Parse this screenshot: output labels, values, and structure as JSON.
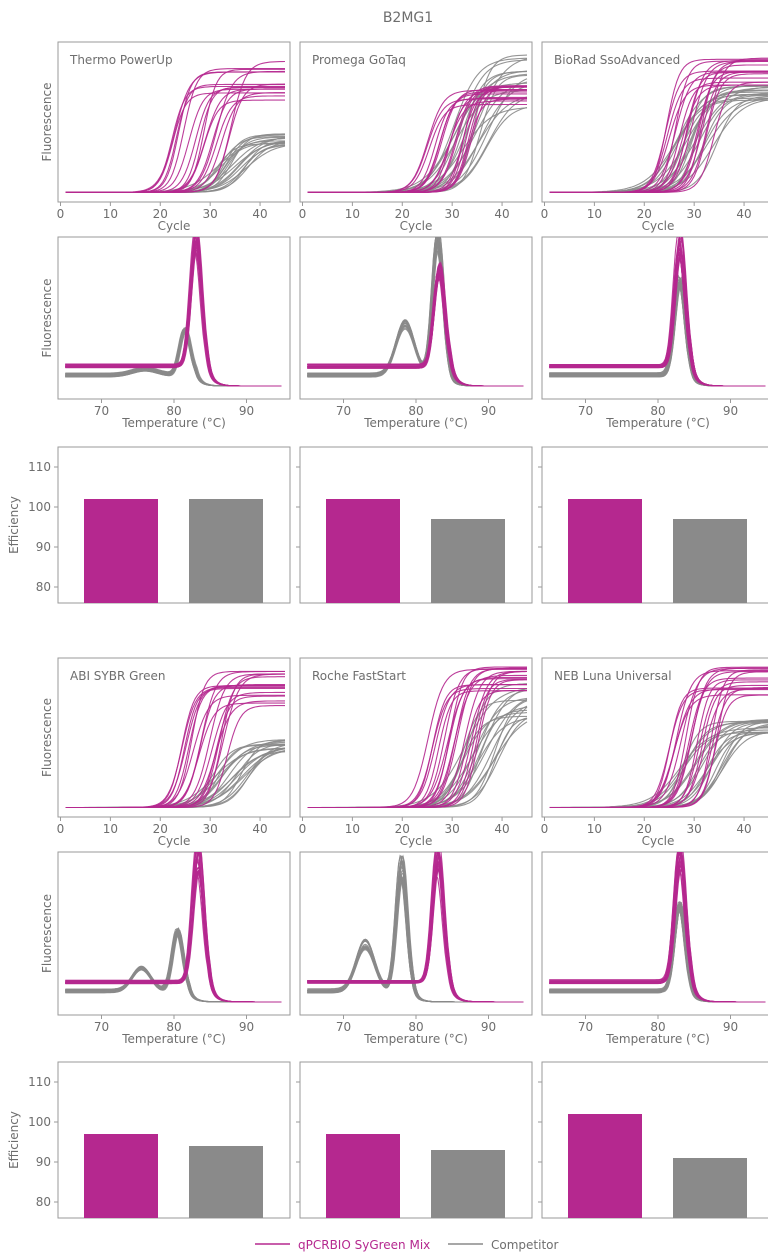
{
  "title": "B2MG1",
  "colors": {
    "sygreen": "#b5288f",
    "competitor": "#8a8a8a",
    "axis": "#9a9a9a",
    "text": "#6e6e6e"
  },
  "legend": {
    "sygreen_label": "qPCRBIO SyGreen Mix",
    "competitor_label": "Competitor"
  },
  "axes": {
    "amp_xlabel": "Cycle",
    "amp_ylabel": "Fluorescence",
    "amp_xticks": [
      "0",
      "10",
      "20",
      "30",
      "40"
    ],
    "melt_xlabel": "Temperature (°C)",
    "melt_ylabel": "Fluorescence",
    "melt_xticks": [
      "70",
      "80",
      "90"
    ],
    "eff_ylabel": "Efficiency",
    "eff_yticks": [
      "80",
      "90",
      "100",
      "110"
    ]
  },
  "chart_data": [
    {
      "type": "line",
      "group": "Thermo PowerUp",
      "title": "Thermo PowerUp",
      "xlabel": "Cycle",
      "ylabel": "Fluorescence",
      "xlim": [
        -0.5,
        46
      ],
      "xticks": [
        0,
        10,
        20,
        30,
        40
      ],
      "series": [
        {
          "name": "qPCRBIO SyGreen Mix",
          "ct_range": [
            22,
            35
          ],
          "plateau_range": [
            0.58,
            0.9
          ],
          "curves": 18
        },
        {
          "name": "Competitor",
          "ct_range": [
            31,
            38
          ],
          "plateau_range": [
            0.32,
            0.4
          ],
          "curves": 18
        }
      ]
    },
    {
      "type": "line",
      "group": "Promega GoTaq",
      "title": "Promega GoTaq",
      "xlabel": "Cycle",
      "ylabel": "Fluorescence",
      "xlim": [
        -0.5,
        46
      ],
      "xticks": [
        0,
        10,
        20,
        30,
        40
      ],
      "series": [
        {
          "name": "qPCRBIO SyGreen Mix",
          "ct_range": [
            25,
            35
          ],
          "plateau_range": [
            0.58,
            0.72
          ],
          "curves": 18
        },
        {
          "name": "Competitor",
          "ct_range": [
            30,
            38
          ],
          "plateau_range": [
            0.55,
            0.95
          ],
          "curves": 18
        }
      ]
    },
    {
      "type": "line",
      "group": "BioRad SsoAdvanced",
      "title": "BioRad SsoAdvanced",
      "xlabel": "Cycle",
      "ylabel": "Fluorescence",
      "xlim": [
        -0.5,
        46
      ],
      "xticks": [
        0,
        10,
        20,
        30,
        40
      ],
      "series": [
        {
          "name": "qPCRBIO SyGreen Mix",
          "ct_range": [
            24,
            34
          ],
          "plateau_range": [
            0.72,
            0.92
          ],
          "curves": 18
        },
        {
          "name": "Competitor",
          "ct_range": [
            26,
            35
          ],
          "plateau_range": [
            0.62,
            0.72
          ],
          "curves": 18
        }
      ]
    },
    {
      "type": "line",
      "group": "Thermo PowerUp",
      "title": "",
      "xlabel": "Temperature (°C)",
      "ylabel": "Fluorescence",
      "xlim": [
        64,
        96
      ],
      "xticks": [
        70,
        80,
        90
      ],
      "series": [
        {
          "name": "qPCRBIO SyGreen Mix",
          "peak_temp": 83,
          "peak_height": [
            0.72,
            0.96
          ],
          "curves": 18
        },
        {
          "name": "Competitor",
          "peak_temp": 81.5,
          "peak_height": [
            0.3,
            0.32
          ],
          "curves": 18
        }
      ]
    },
    {
      "type": "line",
      "group": "Promega GoTaq",
      "title": "",
      "xlabel": "Temperature (°C)",
      "ylabel": "Fluorescence",
      "xlim": [
        64,
        96
      ],
      "xticks": [
        70,
        80,
        90
      ],
      "series": [
        {
          "name": "qPCRBIO SyGreen Mix",
          "peak_temp": 83.2,
          "peak_height": [
            0.6,
            0.72
          ],
          "curves": 18
        },
        {
          "name": "Competitor",
          "peak_temp": 83,
          "peak_height": [
            0.85,
            0.98
          ],
          "shoulder_temp": 78.5,
          "curves": 18
        }
      ]
    },
    {
      "type": "line",
      "group": "BioRad SsoAdvanced",
      "title": "",
      "xlabel": "Temperature (°C)",
      "ylabel": "Fluorescence",
      "xlim": [
        64,
        96
      ],
      "xticks": [
        70,
        80,
        90
      ],
      "series": [
        {
          "name": "qPCRBIO SyGreen Mix",
          "peak_temp": 83,
          "peak_height": [
            0.75,
            0.96
          ],
          "curves": 18
        },
        {
          "name": "Competitor",
          "peak_temp": 83,
          "peak_height": [
            0.6,
            0.68
          ],
          "curves": 18
        }
      ]
    },
    {
      "type": "bar",
      "group": "Thermo PowerUp",
      "title": "",
      "categories": [
        "qPCRBIO SyGreen Mix",
        "Competitor"
      ],
      "values": [
        102,
        102
      ],
      "ylabel": "Efficiency",
      "ylim": [
        76,
        115
      ],
      "yticks": [
        80,
        90,
        100,
        110
      ]
    },
    {
      "type": "bar",
      "group": "Promega GoTaq",
      "title": "",
      "categories": [
        "qPCRBIO SyGreen Mix",
        "Competitor"
      ],
      "values": [
        102,
        97
      ],
      "ylabel": "Efficiency",
      "ylim": [
        76,
        115
      ],
      "yticks": [
        80,
        90,
        100,
        110
      ]
    },
    {
      "type": "bar",
      "group": "BioRad SsoAdvanced",
      "title": "",
      "categories": [
        "qPCRBIO SyGreen Mix",
        "Competitor"
      ],
      "values": [
        102,
        97
      ],
      "ylabel": "Efficiency",
      "ylim": [
        76,
        115
      ],
      "yticks": [
        80,
        90,
        100,
        110
      ]
    },
    {
      "type": "line",
      "group": "ABI SYBR Green",
      "title": "ABI SYBR Green",
      "xlabel": "Cycle",
      "ylabel": "Fluorescence",
      "xlim": [
        -0.5,
        46
      ],
      "xticks": [
        0,
        10,
        20,
        30,
        40
      ],
      "series": [
        {
          "name": "qPCRBIO SyGreen Mix",
          "ct_range": [
            24,
            34
          ],
          "plateau_range": [
            0.68,
            0.95
          ],
          "curves": 18
        },
        {
          "name": "Competitor",
          "ct_range": [
            30,
            38
          ],
          "plateau_range": [
            0.38,
            0.46
          ],
          "curves": 18
        }
      ]
    },
    {
      "type": "line",
      "group": "Roche FastStart",
      "title": "Roche FastStart",
      "xlabel": "Cycle",
      "ylabel": "Fluorescence",
      "xlim": [
        -0.5,
        46
      ],
      "xticks": [
        0,
        10,
        20,
        30,
        40
      ],
      "series": [
        {
          "name": "qPCRBIO SyGreen Mix",
          "ct_range": [
            25,
            36
          ],
          "plateau_range": [
            0.75,
            0.96
          ],
          "curves": 18
        },
        {
          "name": "Competitor",
          "ct_range": [
            31,
            40
          ],
          "plateau_range": [
            0.6,
            0.85
          ],
          "curves": 18
        }
      ]
    },
    {
      "type": "line",
      "group": "NEB Luna Universal",
      "title": "NEB Luna Universal",
      "xlabel": "Cycle",
      "ylabel": "Fluorescence",
      "xlim": [
        -0.5,
        46
      ],
      "xticks": [
        0,
        10,
        20,
        30,
        40
      ],
      "series": [
        {
          "name": "qPCRBIO SyGreen Mix",
          "ct_range": [
            25,
            35
          ],
          "plateau_range": [
            0.75,
            0.96
          ],
          "curves": 18
        },
        {
          "name": "Competitor",
          "ct_range": [
            27,
            37
          ],
          "plateau_range": [
            0.5,
            0.6
          ],
          "curves": 18
        }
      ]
    },
    {
      "type": "line",
      "group": "ABI SYBR Green",
      "title": "",
      "xlabel": "Temperature (°C)",
      "ylabel": "Fluorescence",
      "xlim": [
        64,
        96
      ],
      "xticks": [
        70,
        80,
        90
      ],
      "series": [
        {
          "name": "qPCRBIO SyGreen Mix",
          "peak_temp": 83.3,
          "peak_height": [
            0.72,
            0.96
          ],
          "curves": 18
        },
        {
          "name": "Competitor",
          "peak_temp": 80.5,
          "peak_height": [
            0.38,
            0.42
          ],
          "shoulder_temp": 75.5,
          "curves": 18
        }
      ]
    },
    {
      "type": "line",
      "group": "Roche FastStart",
      "title": "",
      "xlabel": "Temperature (°C)",
      "ylabel": "Fluorescence",
      "xlim": [
        64,
        96
      ],
      "xticks": [
        70,
        80,
        90
      ],
      "series": [
        {
          "name": "qPCRBIO SyGreen Mix",
          "peak_temp": 83,
          "peak_height": [
            0.72,
            0.94
          ],
          "curves": 18
        },
        {
          "name": "Competitor",
          "peak_temp": 78,
          "peak_height": [
            0.75,
            0.92
          ],
          "shoulder_temp": 73,
          "curves": 18
        }
      ]
    },
    {
      "type": "line",
      "group": "NEB Luna Universal",
      "title": "",
      "xlabel": "Temperature (°C)",
      "ylabel": "Fluorescence",
      "xlim": [
        64,
        96
      ],
      "xticks": [
        70,
        80,
        90
      ],
      "series": [
        {
          "name": "qPCRBIO SyGreen Mix",
          "peak_temp": 83,
          "peak_height": [
            0.75,
            0.96
          ],
          "curves": 18
        },
        {
          "name": "Competitor",
          "peak_temp": 83,
          "peak_height": [
            0.55,
            0.6
          ],
          "curves": 18
        }
      ]
    },
    {
      "type": "bar",
      "group": "ABI SYBR Green",
      "title": "",
      "categories": [
        "qPCRBIO SyGreen Mix",
        "Competitor"
      ],
      "values": [
        97,
        94
      ],
      "ylabel": "Efficiency",
      "ylim": [
        76,
        115
      ],
      "yticks": [
        80,
        90,
        100,
        110
      ]
    },
    {
      "type": "bar",
      "group": "Roche FastStart",
      "title": "",
      "categories": [
        "qPCRBIO SyGreen Mix",
        "Competitor"
      ],
      "values": [
        97,
        93
      ],
      "ylabel": "Efficiency",
      "ylim": [
        76,
        115
      ],
      "yticks": [
        80,
        90,
        100,
        110
      ]
    },
    {
      "type": "bar",
      "group": "NEB Luna Universal",
      "title": "",
      "categories": [
        "qPCRBIO SyGreen Mix",
        "Competitor"
      ],
      "values": [
        102,
        91
      ],
      "ylabel": "Efficiency",
      "ylim": [
        76,
        115
      ],
      "yticks": [
        80,
        90,
        100,
        110
      ]
    }
  ]
}
